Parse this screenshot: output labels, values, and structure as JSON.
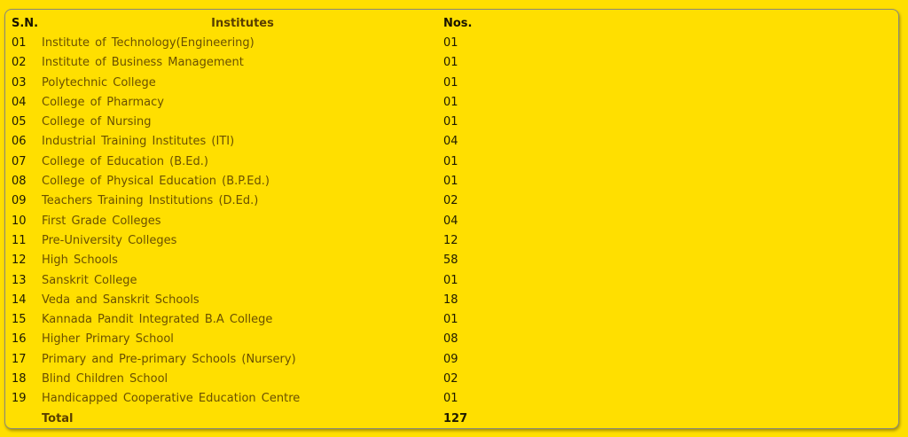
{
  "headers": {
    "sn": "S.N.",
    "institutes": "Institutes",
    "nos": "Nos."
  },
  "rows": [
    {
      "sn": "01",
      "name": "Institute of Technology(Engineering)",
      "nos": "01"
    },
    {
      "sn": "02",
      "name": "Institute of Business Management",
      "nos": "01"
    },
    {
      "sn": "03",
      "name": "Polytechnic College",
      "nos": "01"
    },
    {
      "sn": "04",
      "name": "College of Pharmacy",
      "nos": "01"
    },
    {
      "sn": "05",
      "name": "College of Nursing",
      "nos": "01"
    },
    {
      "sn": "06",
      "name": "Industrial Training Institutes (ITI)",
      "nos": "04"
    },
    {
      "sn": "07",
      "name": "College of Education (B.Ed.)",
      "nos": "01"
    },
    {
      "sn": "08",
      "name": "College of Physical Education (B.P.Ed.)",
      "nos": "01"
    },
    {
      "sn": "09",
      "name": "Teachers Training Institutions (D.Ed.)",
      "nos": "02"
    },
    {
      "sn": "10",
      "name": "First Grade Colleges",
      "nos": "04"
    },
    {
      "sn": "11",
      "name": "Pre-University Colleges",
      "nos": "12"
    },
    {
      "sn": "12",
      "name": "High Schools",
      "nos": "58"
    },
    {
      "sn": "13",
      "name": "Sanskrit College",
      "nos": "01"
    },
    {
      "sn": "14",
      "name": "Veda and Sanskrit Schools",
      "nos": "18"
    },
    {
      "sn": "15",
      "name": "Kannada Pandit Integrated B.A College",
      "nos": "01"
    },
    {
      "sn": "16",
      "name": "Higher Primary School",
      "nos": "08"
    },
    {
      "sn": "17",
      "name": "Primary and Pre-primary Schools (Nursery)",
      "nos": "09"
    },
    {
      "sn": "18",
      "name": "Blind Children School",
      "nos": "02"
    },
    {
      "sn": "19",
      "name": "Handicapped Cooperative Education Centre",
      "nos": "01"
    }
  ],
  "total": {
    "label": "Total",
    "value": "127"
  },
  "colors": {
    "background": "#FFDF00",
    "text_institute": "#6b5000"
  }
}
